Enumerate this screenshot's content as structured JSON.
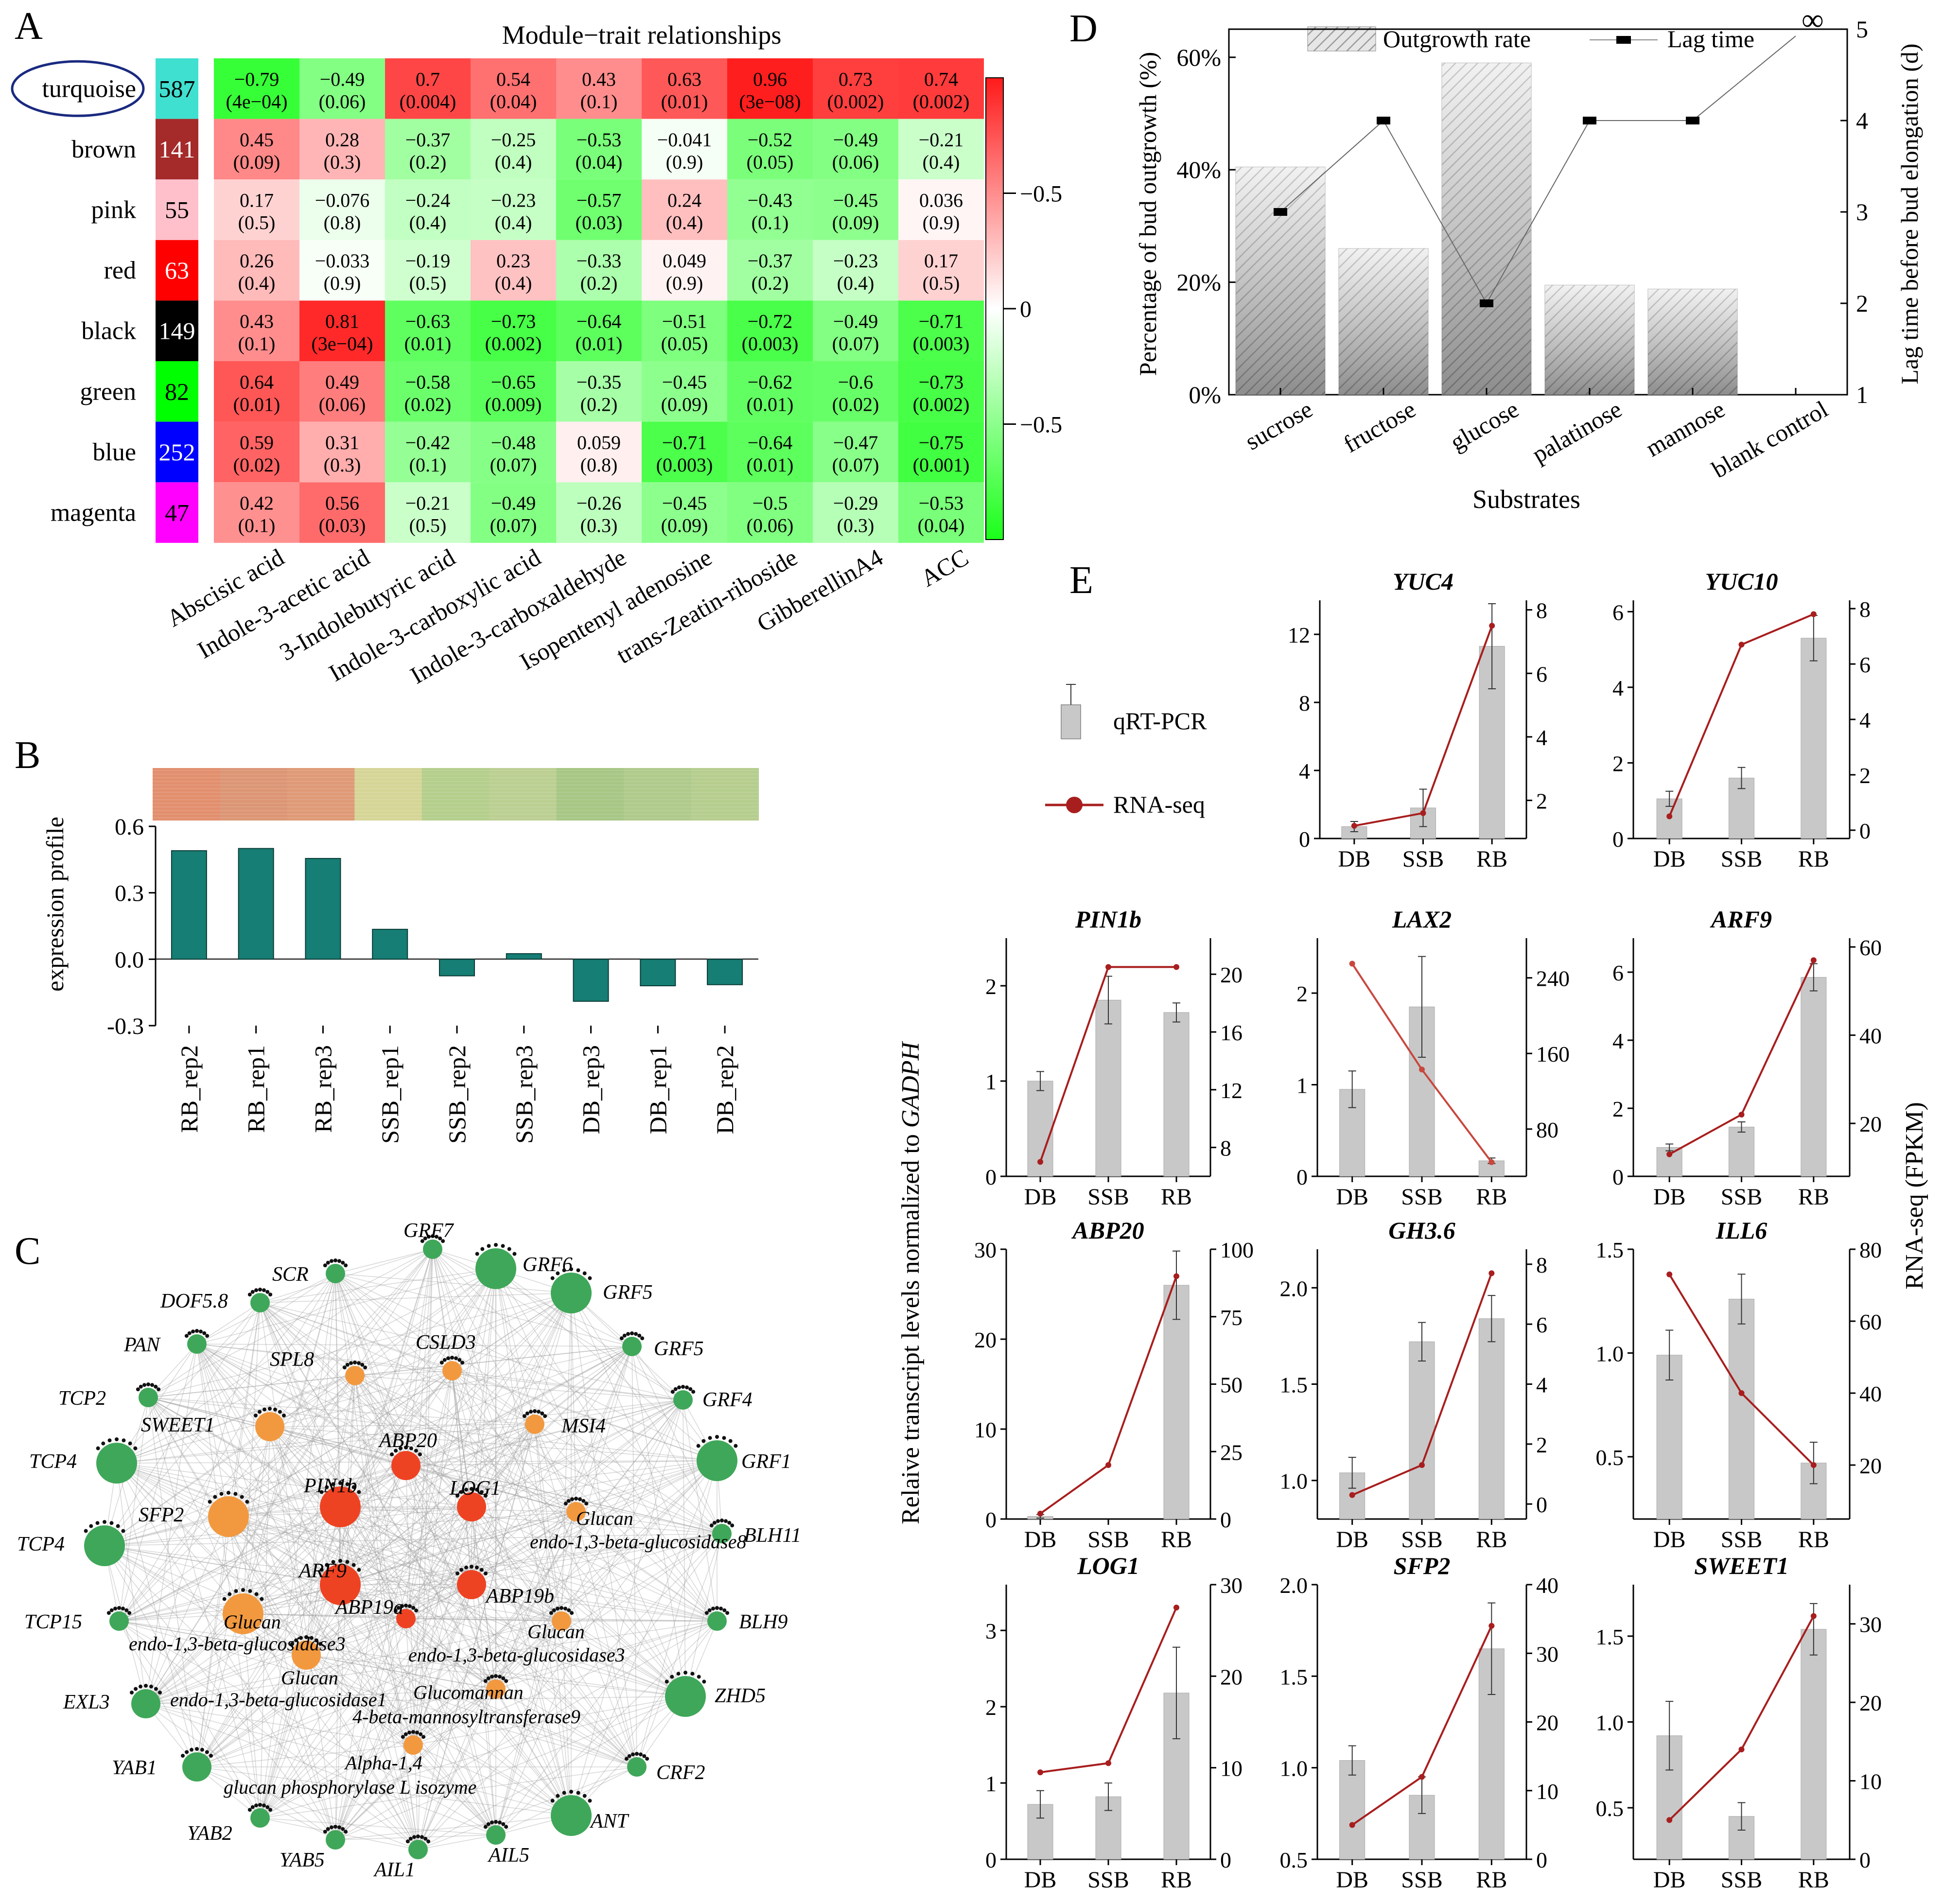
{
  "panel_letters": [
    "A",
    "B",
    "C",
    "D",
    "E"
  ],
  "chart_data": [
    {
      "id": "A",
      "type": "heatmap",
      "title": "Module−trait relationships",
      "modules": [
        {
          "name": "turquoise",
          "size": "587",
          "color": "#40E0D0",
          "circled": true
        },
        {
          "name": "brown",
          "size": "141",
          "color": "#A52A2A"
        },
        {
          "name": "pink",
          "size": "55",
          "color": "#FFC0CB"
        },
        {
          "name": "red",
          "size": "63",
          "color": "#FF0000"
        },
        {
          "name": "black",
          "size": "149",
          "color": "#000000"
        },
        {
          "name": "green",
          "size": "82",
          "color": "#00FF00"
        },
        {
          "name": "blue",
          "size": "252",
          "color": "#0000FF"
        },
        {
          "name": "magenta",
          "size": "47",
          "color": "#FF00FF"
        }
      ],
      "traits": [
        "Abscisic acid",
        "Indole-3-acetic acid",
        "3-Indolebutyric acid",
        "Indole-3-carboxylic acid",
        "Indole-3-carboxaldehyde",
        "Isopentenyl adenosine",
        "trans-Zeatin-riboside",
        "GibberellinA4",
        "ACC"
      ],
      "correlations": [
        [
          -0.79,
          -0.49,
          0.7,
          0.54,
          0.43,
          0.63,
          0.96,
          0.73,
          0.74
        ],
        [
          0.45,
          0.28,
          -0.37,
          -0.25,
          -0.53,
          -0.041,
          -0.52,
          -0.49,
          -0.21
        ],
        [
          0.17,
          -0.076,
          -0.24,
          -0.23,
          -0.57,
          0.24,
          -0.43,
          -0.45,
          0.036
        ],
        [
          0.26,
          -0.033,
          -0.19,
          0.23,
          -0.33,
          0.049,
          -0.37,
          -0.23,
          0.17
        ],
        [
          0.43,
          0.81,
          -0.63,
          -0.73,
          -0.64,
          -0.51,
          -0.72,
          -0.49,
          -0.71
        ],
        [
          0.64,
          0.49,
          -0.58,
          -0.65,
          -0.35,
          -0.45,
          -0.62,
          -0.6,
          -0.73
        ],
        [
          0.59,
          0.31,
          -0.42,
          -0.48,
          0.059,
          -0.71,
          -0.64,
          -0.47,
          -0.75
        ],
        [
          0.42,
          0.56,
          -0.21,
          -0.49,
          -0.26,
          -0.45,
          -0.5,
          -0.29,
          -0.53
        ]
      ],
      "corr_labels": [
        [
          "−0.79",
          "−0.49",
          "0.7",
          "0.54",
          "0.43",
          "0.63",
          "0.96",
          "0.73",
          "0.74"
        ],
        [
          "0.45",
          "0.28",
          "−0.37",
          "−0.25",
          "−0.53",
          "−0.041",
          "−0.52",
          "−0.49",
          "−0.21"
        ],
        [
          "0.17",
          "−0.076",
          "−0.24",
          "−0.23",
          "−0.57",
          "0.24",
          "−0.43",
          "−0.45",
          "0.036"
        ],
        [
          "0.26",
          "−0.033",
          "−0.19",
          "0.23",
          "−0.33",
          "0.049",
          "−0.37",
          "−0.23",
          "0.17"
        ],
        [
          "0.43",
          "0.81",
          "−0.63",
          "−0.73",
          "−0.64",
          "−0.51",
          "−0.72",
          "−0.49",
          "−0.71"
        ],
        [
          "0.64",
          "0.49",
          "−0.58",
          "−0.65",
          "−0.35",
          "−0.45",
          "−0.62",
          "−0.6",
          "−0.73"
        ],
        [
          "0.59",
          "0.31",
          "−0.42",
          "−0.48",
          "0.059",
          "−0.71",
          "−0.64",
          "−0.47",
          "−0.75"
        ],
        [
          "0.42",
          "0.56",
          "−0.21",
          "−0.49",
          "−0.26",
          "−0.45",
          "−0.5",
          "−0.29",
          "−0.53"
        ]
      ],
      "pvalues": [
        [
          "(4e−04)",
          "(0.06)",
          "(0.004)",
          "(0.04)",
          "(0.1)",
          "(0.01)",
          "(3e−08)",
          "(0.002)",
          "(0.002)"
        ],
        [
          "(0.09)",
          "(0.3)",
          "(0.2)",
          "(0.4)",
          "(0.04)",
          "(0.9)",
          "(0.05)",
          "(0.06)",
          "(0.4)"
        ],
        [
          "(0.5)",
          "(0.8)",
          "(0.4)",
          "(0.4)",
          "(0.03)",
          "(0.4)",
          "(0.1)",
          "(0.09)",
          "(0.9)"
        ],
        [
          "(0.4)",
          "(0.9)",
          "(0.5)",
          "(0.4)",
          "(0.2)",
          "(0.9)",
          "(0.2)",
          "(0.4)",
          "(0.5)"
        ],
        [
          "(0.1)",
          "(3e−04)",
          "(0.01)",
          "(0.002)",
          "(0.01)",
          "(0.05)",
          "(0.003)",
          "(0.07)",
          "(0.003)"
        ],
        [
          "(0.01)",
          "(0.06)",
          "(0.02)",
          "(0.009)",
          "(0.2)",
          "(0.09)",
          "(0.01)",
          "(0.02)",
          "(0.002)"
        ],
        [
          "(0.02)",
          "(0.3)",
          "(0.1)",
          "(0.07)",
          "(0.8)",
          "(0.003)",
          "(0.01)",
          "(0.07)",
          "(0.001)"
        ],
        [
          "(0.1)",
          "(0.03)",
          "(0.5)",
          "(0.07)",
          "(0.3)",
          "(0.09)",
          "(0.06)",
          "(0.3)",
          "(0.04)"
        ]
      ],
      "colorbar": {
        "ticks": [
          "0.5",
          "0",
          "−0.5"
        ],
        "values": [
          0.5,
          0,
          -0.5
        ],
        "range": [
          -1,
          1
        ]
      }
    },
    {
      "id": "B",
      "type": "bar",
      "ylabel": "expression profile",
      "categories": [
        "RB_rep2",
        "RB_rep1",
        "RB_rep3",
        "SSB_rep1",
        "SSB_rep2",
        "SSB_rep3",
        "DB_rep3",
        "DB_rep1",
        "DB_rep2"
      ],
      "values": [
        0.49,
        0.5,
        0.455,
        0.135,
        -0.075,
        0.025,
        -0.19,
        -0.12,
        -0.115
      ],
      "ylim": [
        -0.3,
        0.6
      ],
      "yticks": [
        0.6,
        0.3,
        0.0,
        -0.3
      ],
      "ytick_labels": [
        "0.6",
        "0.3",
        "0.0",
        "-0.3"
      ],
      "strip_colors": [
        "#E28F6E",
        "#DC9675",
        "#DF9A77",
        "#D5D597",
        "#B4CE8C",
        "#BBCF92",
        "#A7C785",
        "#AFCA8B",
        "#B5CD8E"
      ],
      "bar_color": "#167E74"
    },
    {
      "id": "C",
      "type": "network",
      "nodes": [
        {
          "label": "GRF7",
          "color": "green",
          "size": "s"
        },
        {
          "label": "GRF6",
          "color": "green",
          "size": "l"
        },
        {
          "label": "SCR",
          "color": "green",
          "size": "s"
        },
        {
          "label": "GRF5",
          "color": "green",
          "size": "l"
        },
        {
          "label": "DOF5.8",
          "color": "green",
          "size": "s"
        },
        {
          "label": "GRF5",
          "color": "green",
          "size": "s"
        },
        {
          "label": "PAN",
          "color": "green",
          "size": "s"
        },
        {
          "label": "GRF4",
          "color": "green",
          "size": "s"
        },
        {
          "label": "TCP2",
          "color": "green",
          "size": "s"
        },
        {
          "label": "GRF1",
          "color": "green",
          "size": "l"
        },
        {
          "label": "TCP4",
          "color": "green",
          "size": "l"
        },
        {
          "label": "BLH11",
          "color": "green",
          "size": "s"
        },
        {
          "label": "TCP4",
          "color": "green",
          "size": "l"
        },
        {
          "label": "BLH9",
          "color": "green",
          "size": "s"
        },
        {
          "label": "TCP15",
          "color": "green",
          "size": "s"
        },
        {
          "label": "ZHD5",
          "color": "green",
          "size": "l"
        },
        {
          "label": "EXL3",
          "color": "green",
          "size": "m"
        },
        {
          "label": "CRF2",
          "color": "green",
          "size": "s"
        },
        {
          "label": "YAB1",
          "color": "green",
          "size": "m"
        },
        {
          "label": "ANT",
          "color": "green",
          "size": "l"
        },
        {
          "label": "YAB2",
          "color": "green",
          "size": "s"
        },
        {
          "label": "AIL5",
          "color": "green",
          "size": "s"
        },
        {
          "label": "YAB5",
          "color": "green",
          "size": "s"
        },
        {
          "label": "AIL1",
          "color": "green",
          "size": "s"
        },
        {
          "label": "SPL8",
          "color": "orange",
          "size": "s"
        },
        {
          "label": "CSLD3",
          "color": "orange",
          "size": "s"
        },
        {
          "label": "SWEET1",
          "color": "orange",
          "size": "m"
        },
        {
          "label": "MSI4",
          "color": "orange",
          "size": "s"
        },
        {
          "label": "SFP2",
          "color": "orange",
          "size": "l"
        },
        {
          "label": "ABP20",
          "color": "red",
          "size": "m"
        },
        {
          "label": "PIN1b",
          "color": "red",
          "size": "l"
        },
        {
          "label": "LOG1",
          "color": "red",
          "size": "m"
        },
        {
          "label": "ARF9",
          "color": "red",
          "size": "l"
        },
        {
          "label": "ABP19b",
          "color": "red",
          "size": "m"
        },
        {
          "label": "ABP19a",
          "color": "red",
          "size": "s"
        }
      ],
      "extra_labels": {
        "glucan1": "Glucan",
        "glucan1b": "endo-1,3-beta-glucosidase8",
        "glucan2": "Glucan",
        "glucan2b": "endo-1,3-beta-glucosidase3",
        "glucan3": "Glucan",
        "glucan3b": "endo-1,3-beta-glucosidase3",
        "glucan4": "Glucan",
        "glucan4b": "endo-1,3-beta-glucosidase1",
        "mann1": "Glucomannan",
        "mann2": "4-beta-mannosyltransferase9",
        "phos1": "Alpha-1,4",
        "phos2": "glucan phosphorylase L isozyme"
      }
    },
    {
      "id": "D",
      "type": "bar",
      "categories": [
        "sucrose",
        "fructose",
        "glucose",
        "palatinose",
        "mannose",
        "blank control"
      ],
      "outgrowth_rate_pct": [
        40.5,
        26,
        59,
        19.5,
        18.8,
        0
      ],
      "lag_time_d": [
        3,
        4,
        2,
        4,
        4,
        null
      ],
      "lag_infinite_label": "∞",
      "ylabel": "Percentage of bud outgrowth (%)",
      "y2label": "Lag time before bud elongation (d)",
      "xlabel": "Substrates",
      "legend": {
        "bar": "Outgrowth rate",
        "line": "Lag time"
      },
      "ylim": [
        0,
        65
      ],
      "y2lim": [
        1,
        5
      ],
      "yticks": [
        "0%",
        "20%",
        "40%",
        "60%"
      ],
      "y2ticks": [
        "1",
        "2",
        "3",
        "4",
        "5"
      ]
    },
    {
      "id": "E",
      "type": "bar+line",
      "ylabel": "Relaive transcript levels normalized to ",
      "ylabel_gene": "GADPH",
      "y2label": "RNA-seq (FPKM)",
      "legend": {
        "bar": "qRT-PCR",
        "line": "RNA-seq"
      },
      "categories": [
        "DB",
        "SSB",
        "RB"
      ],
      "panels": [
        {
          "gene": "YUC4",
          "q": [
            0.7,
            1.8,
            11.3
          ],
          "qerr": [
            0.3,
            1.1,
            2.5
          ],
          "rna": [
            1.2,
            1.6,
            7.5
          ],
          "ylim": [
            0,
            14
          ],
          "yt": [
            0,
            4,
            8,
            12
          ],
          "y2lim": [
            0.8,
            8.3
          ],
          "y2t": [
            2,
            4,
            6,
            8
          ]
        },
        {
          "gene": "YUC10",
          "q": [
            1.05,
            1.6,
            5.3
          ],
          "qerr": [
            0.2,
            0.28,
            0.6
          ],
          "rna": [
            0.5,
            6.7,
            7.8
          ],
          "ylim": [
            0,
            6.3
          ],
          "yt": [
            0,
            2,
            4,
            6
          ],
          "y2lim": [
            -0.3,
            8.3
          ],
          "y2t": [
            0,
            2,
            4,
            6,
            8
          ]
        },
        {
          "gene": "PIN1b",
          "q": [
            1.0,
            1.85,
            1.72
          ],
          "qerr": [
            0.1,
            0.25,
            0.1
          ],
          "rna": [
            7,
            20.5,
            20.5
          ],
          "ylim": [
            0,
            2.5
          ],
          "yt": [
            0,
            1,
            2
          ],
          "y2lim": [
            6,
            22.5
          ],
          "y2t": [
            8,
            12,
            16,
            20
          ]
        },
        {
          "gene": "LAX2",
          "q": [
            0.95,
            1.85,
            0.17
          ],
          "qerr": [
            0.2,
            0.55,
            0.03
          ],
          "rna": [
            255,
            143,
            45
          ],
          "ylim": [
            0,
            2.6
          ],
          "yt": [
            0,
            1,
            2
          ],
          "y2lim": [
            30,
            282
          ],
          "y2t": [
            80,
            160,
            240
          ]
        },
        {
          "gene": "ARF9",
          "q": [
            0.85,
            1.45,
            5.85
          ],
          "qerr": [
            0.1,
            0.15,
            0.4
          ],
          "rna": [
            13,
            22,
            57
          ],
          "ylim": [
            0,
            7
          ],
          "yt": [
            0,
            2,
            4,
            6
          ],
          "y2lim": [
            8,
            62
          ],
          "y2t": [
            20,
            40,
            60
          ]
        },
        {
          "gene": "ABP20",
          "q": [
            0.3,
            0,
            26
          ],
          "qerr": [
            0.2,
            0,
            3.8
          ],
          "rna": [
            2,
            20,
            90
          ],
          "ylim": [
            0,
            30
          ],
          "yt": [
            0,
            10,
            20,
            30
          ],
          "y2lim": [
            0,
            100
          ],
          "y2t": [
            0,
            25,
            50,
            75,
            100
          ]
        },
        {
          "gene": "GH3.6",
          "q": [
            1.04,
            1.72,
            1.84
          ],
          "qerr": [
            0.08,
            0.1,
            0.12
          ],
          "rna": [
            0.3,
            1.3,
            7.7
          ],
          "ylim": [
            0.8,
            2.2
          ],
          "yt": [
            1.0,
            1.5,
            2.0
          ],
          "y2lim": [
            -0.5,
            8.5
          ],
          "y2t": [
            0,
            2,
            4,
            6,
            8
          ]
        },
        {
          "gene": "ILL6",
          "q": [
            0.99,
            1.26,
            0.47
          ],
          "qerr": [
            0.12,
            0.12,
            0.1
          ],
          "rna": [
            73,
            40,
            20
          ],
          "ylim": [
            0.2,
            1.5
          ],
          "yt": [
            0.5,
            1.0,
            1.5
          ],
          "y2lim": [
            5,
            80
          ],
          "y2t": [
            20,
            40,
            60,
            80
          ]
        },
        {
          "gene": "LOG1",
          "q": [
            0.72,
            0.82,
            2.18
          ],
          "qerr": [
            0.18,
            0.18,
            0.6
          ],
          "rna": [
            9.5,
            10.5,
            27.5
          ],
          "ylim": [
            0,
            3.6
          ],
          "yt": [
            0,
            1,
            2,
            3
          ],
          "y2lim": [
            0,
            30
          ],
          "y2t": [
            0,
            10,
            20,
            30
          ]
        },
        {
          "gene": "SFP2",
          "q": [
            1.04,
            0.85,
            1.65
          ],
          "qerr": [
            0.08,
            0.1,
            0.25
          ],
          "rna": [
            5,
            12,
            34
          ],
          "ylim": [
            0.5,
            2
          ],
          "yt": [
            0.5,
            1.0,
            1.5,
            2.0
          ],
          "y2lim": [
            0,
            40
          ],
          "y2t": [
            0,
            10,
            20,
            30,
            40
          ]
        },
        {
          "gene": "SWEET1",
          "q": [
            0.92,
            0.45,
            1.54
          ],
          "qerr": [
            0.2,
            0.08,
            0.15
          ],
          "rna": [
            5,
            14,
            31
          ],
          "ylim": [
            0.2,
            1.8
          ],
          "yt": [
            0.5,
            1.0,
            1.5
          ],
          "y2lim": [
            0,
            35
          ],
          "y2t": [
            0,
            10,
            20,
            30
          ]
        }
      ]
    }
  ]
}
